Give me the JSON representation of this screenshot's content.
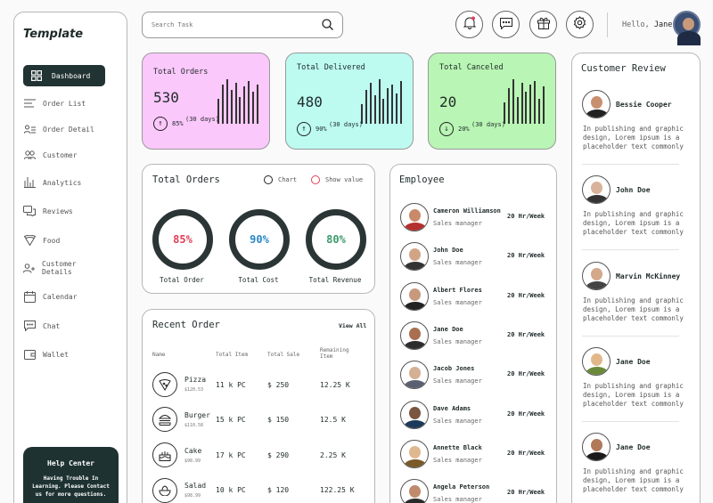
{
  "sidebar": {
    "logo": "Template",
    "items": [
      {
        "label": "Dashboard",
        "icon": "grid-icon"
      },
      {
        "label": "Order List",
        "icon": "list-icon"
      },
      {
        "label": "Order Detail",
        "icon": "user-list-icon"
      },
      {
        "label": "Customer",
        "icon": "users-icon"
      },
      {
        "label": "Analytics",
        "icon": "bar-chart-icon"
      },
      {
        "label": "Reviews",
        "icon": "chat-bubbles-icon"
      },
      {
        "label": "Food",
        "icon": "pizza-slice-icon"
      },
      {
        "label": "Customer Details",
        "icon": "user-plus-icon"
      },
      {
        "label": "Calendar",
        "icon": "calendar-icon"
      },
      {
        "label": "Chat",
        "icon": "chat-icon"
      },
      {
        "label": "Wallet",
        "icon": "wallet-icon"
      }
    ],
    "help": {
      "title": "Help Center",
      "text": "Having Trouble In Learning. Please Contact us for more questions."
    }
  },
  "header": {
    "search_placeholder": "Search Task",
    "greeting": "Hello,",
    "user_name": "Jane"
  },
  "stats": [
    {
      "title": "Total Orders",
      "value": "530",
      "pct": "85%",
      "days": "(30 days)",
      "trend": "up",
      "bg": "#fbc8fb"
    },
    {
      "title": "Total Delivered",
      "value": "480",
      "pct": "90%",
      "days": "(30 days)",
      "trend": "up",
      "bg": "#bdfbf1"
    },
    {
      "title": "Total Canceled",
      "value": "20",
      "pct": "20%",
      "days": "(30 days)",
      "trend": "down",
      "bg": "#b9f5b4"
    }
  ],
  "orders_panel": {
    "title": "Total Orders",
    "options": [
      "Chart",
      "Show value"
    ],
    "donuts": [
      {
        "value": "85%",
        "label": "Total Order",
        "color": "#e0405a"
      },
      {
        "value": "90%",
        "label": "Total Cost",
        "color": "#2d88c6"
      },
      {
        "value": "80%",
        "label": "Total Revenue",
        "color": "#3a9a6a"
      }
    ]
  },
  "recent": {
    "title": "Recent Order",
    "view_all": "View All",
    "columns": [
      "Name",
      "Total Item",
      "Total Sale",
      "Remaining Item"
    ],
    "rows": [
      {
        "name": "Pizza",
        "price": "$120.53",
        "items": "11 k PC",
        "sale": "$ 250",
        "remaining": "12.25 K",
        "icon": "pizza-icon"
      },
      {
        "name": "Burger",
        "price": "$110.58",
        "items": "15 k PC",
        "sale": "$ 150",
        "remaining": "12.5 K",
        "icon": "burger-icon"
      },
      {
        "name": "Cake",
        "price": "$98.99",
        "items": "17 k PC",
        "sale": "$ 290",
        "remaining": "2.25 K",
        "icon": "cake-icon"
      },
      {
        "name": "Salad",
        "price": "$98.99",
        "items": "10 k PC",
        "sale": "$ 120",
        "remaining": "122.25 K",
        "icon": "salad-icon"
      }
    ]
  },
  "employee": {
    "title": "Employee",
    "list": [
      {
        "name": "Cameron Williamson",
        "role": "Sales manager",
        "rate": "20 Hr/Week"
      },
      {
        "name": "John Doe",
        "role": "Sales manager",
        "rate": "20 Hr/Week"
      },
      {
        "name": "Albert Flores",
        "role": "Sales manager",
        "rate": "20 Hr/Week"
      },
      {
        "name": "Jane Doe",
        "role": "Sales manager",
        "rate": "20 Hr/Week"
      },
      {
        "name": "Jacob Jones",
        "role": "Sales manager",
        "rate": "20 Hr/Week"
      },
      {
        "name": "Dave Adams",
        "role": "Sales manager",
        "rate": "20 Hr/Week"
      },
      {
        "name": "Annette Black",
        "role": "Sales manager",
        "rate": "20 Hr/Week"
      },
      {
        "name": "Angela Peterson",
        "role": "Sales manager",
        "rate": "20 Hr/Week"
      }
    ]
  },
  "reviews": {
    "title": "Customer Review",
    "list": [
      {
        "name": "Bessie Cooper",
        "text": "In publishing and graphic design, Lorem ipsum is a placeholder text commonly"
      },
      {
        "name": "John Doe",
        "text": "In publishing and graphic design, Lorem ipsum is a placeholder text commonly"
      },
      {
        "name": "Marvin McKinney",
        "text": "In publishing and graphic design, Lorem ipsum is a placeholder text commonly"
      },
      {
        "name": "Jane Doe",
        "text": "In publishing and graphic design, Lorem ipsum is a placeholder text commonly"
      },
      {
        "name": "Jane Doe",
        "text": "In publishing and graphic design, Lorem ipsum is a placeholder text commonly"
      }
    ]
  }
}
